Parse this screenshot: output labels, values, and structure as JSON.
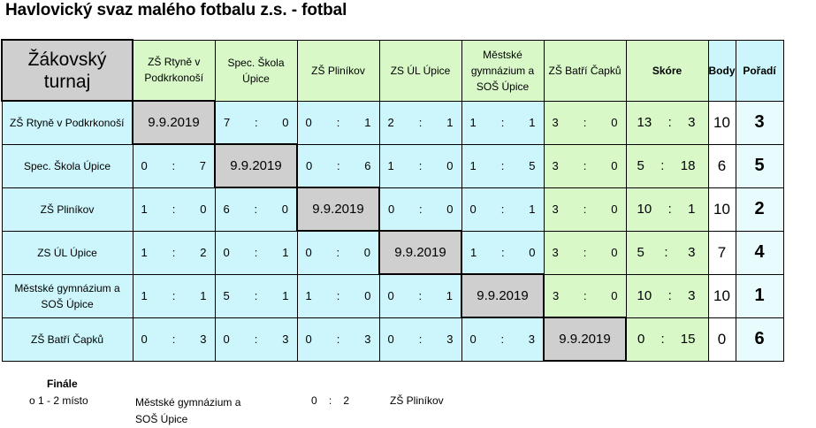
{
  "title": "Havlovický svaz malého fotbalu z.s. - fotbal",
  "corner": "Žákovský turnaj",
  "headers": {
    "teams": [
      "ZŠ Rtyně v Podkrkonoší",
      "Spec. Škola Úpice",
      "ZŠ Pliníkov",
      "ZS ÚL Úpice",
      "Městské gymnázium a SOŠ Úpice",
      "ZŠ Batří Čapků"
    ],
    "score": "Skóre",
    "points": "Body",
    "rank": "Pořadí"
  },
  "rows": [
    {
      "team": "ZŠ Rtyně v Podkrkonoší",
      "cells": [
        [
          "9.9.2019"
        ],
        [
          "7",
          "0"
        ],
        [
          "0",
          "1"
        ],
        [
          "2",
          "1"
        ],
        [
          "1",
          "1"
        ],
        [
          "3",
          "0"
        ]
      ],
      "score": [
        "13",
        "3"
      ],
      "points": "10",
      "rank": "3"
    },
    {
      "team": "Spec. Škola Úpice",
      "cells": [
        [
          "0",
          "7"
        ],
        [
          "9.9.2019"
        ],
        [
          "0",
          "6"
        ],
        [
          "1",
          "0"
        ],
        [
          "1",
          "5"
        ],
        [
          "3",
          "0"
        ]
      ],
      "score": [
        "5",
        "18"
      ],
      "points": "6",
      "rank": "5"
    },
    {
      "team": "ZŠ Pliníkov",
      "cells": [
        [
          "1",
          "0"
        ],
        [
          "6",
          "0"
        ],
        [
          "9.9.2019"
        ],
        [
          "0",
          "0"
        ],
        [
          "0",
          "1"
        ],
        [
          "3",
          "0"
        ]
      ],
      "score": [
        "10",
        "1"
      ],
      "points": "10",
      "rank": "2"
    },
    {
      "team": "ZS ÚL Úpice",
      "cells": [
        [
          "1",
          "2"
        ],
        [
          "0",
          "1"
        ],
        [
          "0",
          "0"
        ],
        [
          "9.9.2019"
        ],
        [
          "1",
          "0"
        ],
        [
          "3",
          "0"
        ]
      ],
      "score": [
        "5",
        "3"
      ],
      "points": "7",
      "rank": "4"
    },
    {
      "team": "Městské gymnázium a SOŠ Úpice",
      "cells": [
        [
          "1",
          "1"
        ],
        [
          "5",
          "1"
        ],
        [
          "1",
          "0"
        ],
        [
          "0",
          "1"
        ],
        [
          "9.9.2019"
        ],
        [
          "3",
          "0"
        ]
      ],
      "score": [
        "10",
        "3"
      ],
      "points": "10",
      "rank": "1"
    },
    {
      "team": "ZŠ Batří Čapků",
      "cells": [
        [
          "0",
          "3"
        ],
        [
          "0",
          "3"
        ],
        [
          "0",
          "3"
        ],
        [
          "0",
          "3"
        ],
        [
          "0",
          "3"
        ],
        [
          "9.9.2019"
        ]
      ],
      "score": [
        "0",
        "15"
      ],
      "points": "0",
      "rank": "6"
    }
  ],
  "separator": ":",
  "finale": {
    "label": "Finále",
    "subtitle": "o 1 - 2 místo",
    "team1": "Městské gymnázium a SOŠ Úpice",
    "score": [
      "0",
      "2"
    ],
    "team2": "ZŠ Pliníkov"
  },
  "colors": {
    "green": "#d8f8c8",
    "cyan": "#ccf6fb",
    "gray": "#cfcfcf"
  }
}
